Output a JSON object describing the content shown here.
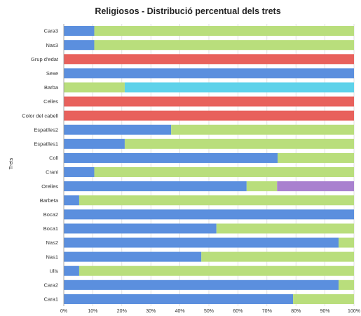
{
  "chart_data": {
    "type": "bar",
    "orientation": "horizontal",
    "stacked": true,
    "title": "Religiosos - Distribució percentual dels trets",
    "xlabel": "",
    "ylabel": "Trets",
    "xlim": [
      0,
      100
    ],
    "xticks": [
      "0%",
      "10%",
      "20%",
      "30%",
      "40%",
      "50%",
      "60%",
      "70%",
      "80%",
      "90%",
      "100%"
    ],
    "grid": true,
    "legend": "none",
    "categories": [
      "Cara3",
      "Nas3",
      "Grup d'edat",
      "Sexe",
      "Barba",
      "Celles",
      "Color del cabell",
      "Espatlles2",
      "Espatlles1",
      "Coll",
      "Crani",
      "Orelles",
      "Barbeta",
      "Boca2",
      "Boca1",
      "Nas2",
      "Nas1",
      "Ulls",
      "Cara2",
      "Cara1"
    ],
    "segments": [
      [
        {
          "value": 10.5,
          "color": "#5b8fde"
        },
        {
          "value": 89.5,
          "color": "#b9de7c"
        }
      ],
      [
        {
          "value": 10.5,
          "color": "#5b8fde"
        },
        {
          "value": 89.5,
          "color": "#b9de7c"
        }
      ],
      [
        {
          "value": 100,
          "color": "#e8615c"
        }
      ],
      [
        {
          "value": 100,
          "color": "#5b8fde"
        }
      ],
      [
        {
          "value": 21,
          "color": "#b9de7c"
        },
        {
          "value": 79,
          "color": "#5ed2ea"
        }
      ],
      [
        {
          "value": 100,
          "color": "#e8615c"
        }
      ],
      [
        {
          "value": 100,
          "color": "#e8615c"
        }
      ],
      [
        {
          "value": 37,
          "color": "#5b8fde"
        },
        {
          "value": 63,
          "color": "#b9de7c"
        }
      ],
      [
        {
          "value": 21,
          "color": "#5b8fde"
        },
        {
          "value": 79,
          "color": "#b9de7c"
        }
      ],
      [
        {
          "value": 73.7,
          "color": "#5b8fde"
        },
        {
          "value": 26.3,
          "color": "#b9de7c"
        }
      ],
      [
        {
          "value": 10.5,
          "color": "#5b8fde"
        },
        {
          "value": 89.5,
          "color": "#b9de7c"
        }
      ],
      [
        {
          "value": 63,
          "color": "#5b8fde"
        },
        {
          "value": 10.5,
          "color": "#b9de7c"
        },
        {
          "value": 26.5,
          "color": "#a981cf"
        }
      ],
      [
        {
          "value": 5.3,
          "color": "#5b8fde"
        },
        {
          "value": 94.7,
          "color": "#b9de7c"
        }
      ],
      [
        {
          "value": 100,
          "color": "#5b8fde"
        }
      ],
      [
        {
          "value": 52.6,
          "color": "#5b8fde"
        },
        {
          "value": 47.4,
          "color": "#b9de7c"
        }
      ],
      [
        {
          "value": 94.7,
          "color": "#5b8fde"
        },
        {
          "value": 5.3,
          "color": "#b9de7c"
        }
      ],
      [
        {
          "value": 47.4,
          "color": "#5b8fde"
        },
        {
          "value": 52.6,
          "color": "#b9de7c"
        }
      ],
      [
        {
          "value": 5.3,
          "color": "#5b8fde"
        },
        {
          "value": 94.7,
          "color": "#b9de7c"
        }
      ],
      [
        {
          "value": 94.7,
          "color": "#5b8fde"
        },
        {
          "value": 5.3,
          "color": "#b9de7c"
        }
      ],
      [
        {
          "value": 79,
          "color": "#5b8fde"
        },
        {
          "value": 21,
          "color": "#b9de7c"
        }
      ]
    ]
  }
}
